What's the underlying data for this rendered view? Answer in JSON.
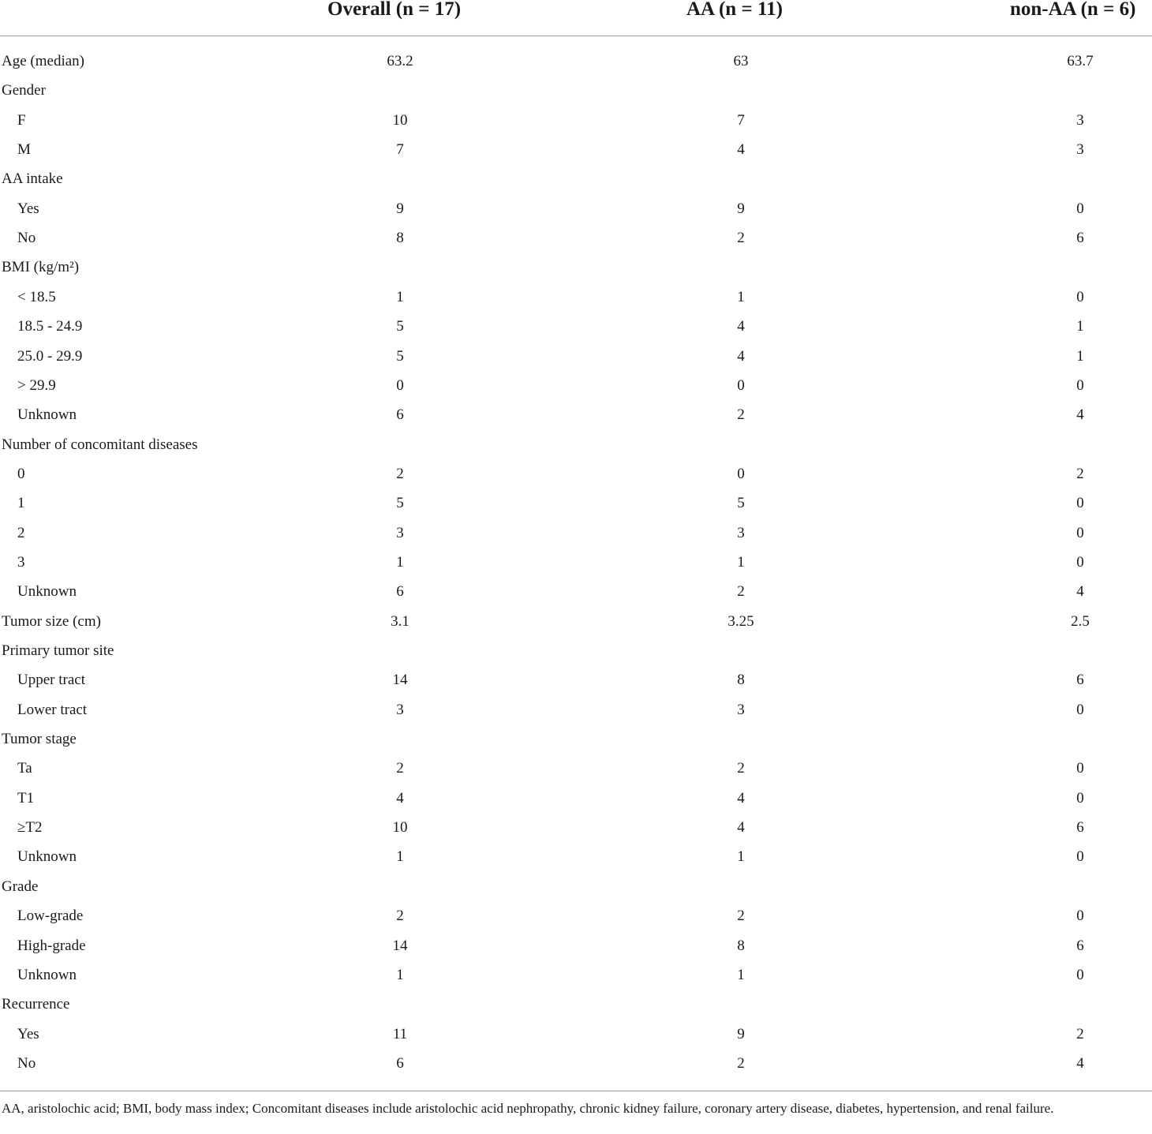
{
  "table": {
    "header": {
      "label": "",
      "overall": "Overall (n = 17)",
      "aa": "AA (n = 11)",
      "non_aa": "non-AA (n = 6)"
    },
    "rows": [
      {
        "label": "Age (median)",
        "indent": false,
        "overall": "63.2",
        "aa": "63",
        "non_aa": "63.7"
      },
      {
        "label": "Gender",
        "indent": false,
        "overall": "",
        "aa": "",
        "non_aa": ""
      },
      {
        "label": "F",
        "indent": true,
        "overall": "10",
        "aa": "7",
        "non_aa": "3"
      },
      {
        "label": "M",
        "indent": true,
        "overall": "7",
        "aa": "4",
        "non_aa": "3"
      },
      {
        "label": "AA intake",
        "indent": false,
        "overall": "",
        "aa": "",
        "non_aa": ""
      },
      {
        "label": "Yes",
        "indent": true,
        "overall": "9",
        "aa": "9",
        "non_aa": "0"
      },
      {
        "label": "No",
        "indent": true,
        "overall": "8",
        "aa": "2",
        "non_aa": "6"
      },
      {
        "label": "BMI (kg/m²)",
        "indent": false,
        "overall": "",
        "aa": "",
        "non_aa": ""
      },
      {
        "label": "< 18.5",
        "indent": true,
        "overall": "1",
        "aa": "1",
        "non_aa": "0"
      },
      {
        "label": "18.5 - 24.9",
        "indent": true,
        "overall": "5",
        "aa": "4",
        "non_aa": "1"
      },
      {
        "label": "25.0 - 29.9",
        "indent": true,
        "overall": "5",
        "aa": "4",
        "non_aa": "1"
      },
      {
        "label": "> 29.9",
        "indent": true,
        "overall": "0",
        "aa": "0",
        "non_aa": "0"
      },
      {
        "label": "Unknown",
        "indent": true,
        "overall": "6",
        "aa": "2",
        "non_aa": "4"
      },
      {
        "label": "Number of concomitant diseases",
        "indent": false,
        "overall": "",
        "aa": "",
        "non_aa": ""
      },
      {
        "label": "0",
        "indent": true,
        "overall": "2",
        "aa": "0",
        "non_aa": "2"
      },
      {
        "label": "1",
        "indent": true,
        "overall": "5",
        "aa": "5",
        "non_aa": "0"
      },
      {
        "label": "2",
        "indent": true,
        "overall": "3",
        "aa": "3",
        "non_aa": "0"
      },
      {
        "label": "3",
        "indent": true,
        "overall": "1",
        "aa": "1",
        "non_aa": "0"
      },
      {
        "label": "Unknown",
        "indent": true,
        "overall": "6",
        "aa": "2",
        "non_aa": "4"
      },
      {
        "label": "Tumor size (cm)",
        "indent": false,
        "overall": "3.1",
        "aa": "3.25",
        "non_aa": "2.5"
      },
      {
        "label": "Primary tumor site",
        "indent": false,
        "overall": "",
        "aa": "",
        "non_aa": ""
      },
      {
        "label": "Upper tract",
        "indent": true,
        "overall": "14",
        "aa": "8",
        "non_aa": "6"
      },
      {
        "label": "Lower tract",
        "indent": true,
        "overall": "3",
        "aa": "3",
        "non_aa": "0"
      },
      {
        "label": "Tumor stage",
        "indent": false,
        "overall": "",
        "aa": "",
        "non_aa": ""
      },
      {
        "label": "Ta",
        "indent": true,
        "overall": "2",
        "aa": "2",
        "non_aa": "0"
      },
      {
        "label": "T1",
        "indent": true,
        "overall": "4",
        "aa": "4",
        "non_aa": "0"
      },
      {
        "label": "≥T2",
        "indent": true,
        "overall": "10",
        "aa": "4",
        "non_aa": "6"
      },
      {
        "label": "Unknown",
        "indent": true,
        "overall": "1",
        "aa": "1",
        "non_aa": "0"
      },
      {
        "label": "Grade",
        "indent": false,
        "overall": "",
        "aa": "",
        "non_aa": ""
      },
      {
        "label": "Low-grade",
        "indent": true,
        "overall": "2",
        "aa": "2",
        "non_aa": "0"
      },
      {
        "label": "High-grade",
        "indent": true,
        "overall": "14",
        "aa": "8",
        "non_aa": "6"
      },
      {
        "label": "Unknown",
        "indent": true,
        "overall": "1",
        "aa": "1",
        "non_aa": "0"
      },
      {
        "label": "Recurrence",
        "indent": false,
        "overall": "",
        "aa": "",
        "non_aa": ""
      },
      {
        "label": "Yes",
        "indent": true,
        "overall": "11",
        "aa": "9",
        "non_aa": "2"
      },
      {
        "label": "No",
        "indent": true,
        "overall": "6",
        "aa": "2",
        "non_aa": "4"
      }
    ],
    "footnote": "AA, aristolochic acid; BMI, body mass index; Concomitant diseases include aristolochic acid nephropathy, chronic kidney failure, coronary artery disease, diabetes, hypertension, and renal failure."
  }
}
